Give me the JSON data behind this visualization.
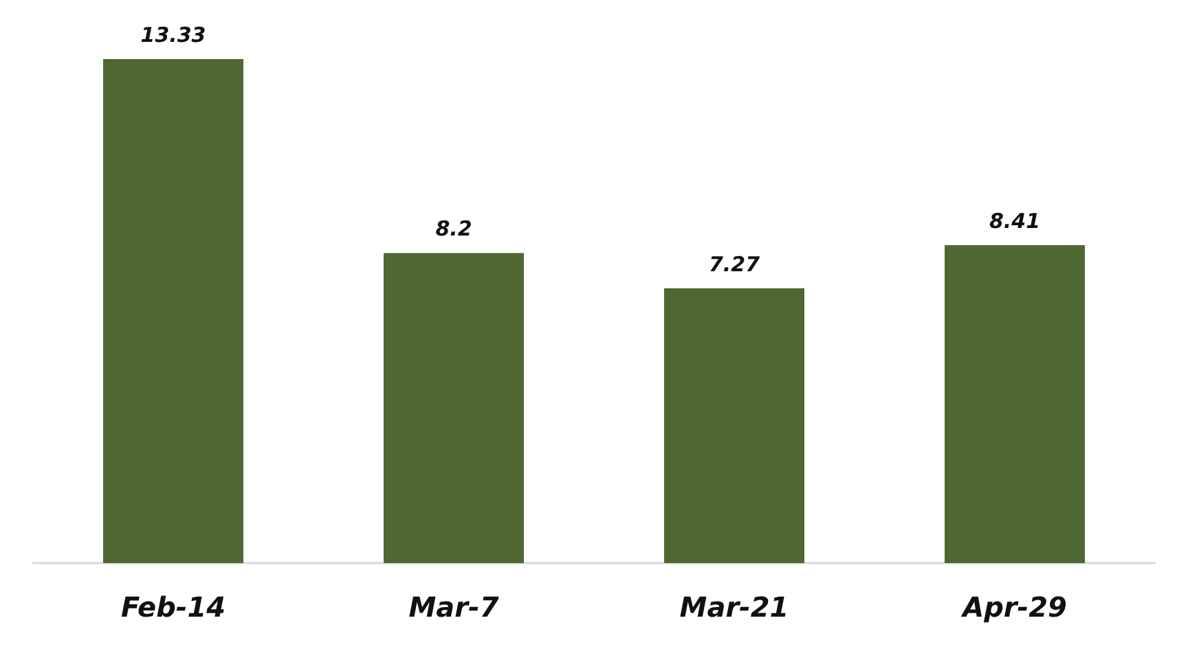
{
  "chart_data": {
    "type": "bar",
    "categories": [
      "Feb-14",
      "Mar-7",
      "Mar-21",
      "Apr-29"
    ],
    "values": [
      13.33,
      8.2,
      7.27,
      8.41
    ],
    "color": "#4f6832",
    "data_labels": true
  }
}
